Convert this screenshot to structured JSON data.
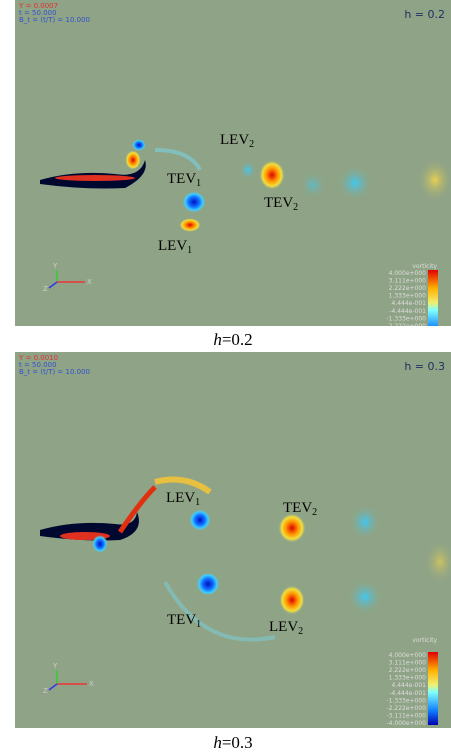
{
  "panels": [
    {
      "header": [
        "Y = 0.0007",
        "t = 50.000",
        "B_t = (t/T) = 10.000"
      ],
      "h_label": "h = 0.2",
      "annotations": [
        {
          "text": "LEV",
          "sub": "2"
        },
        {
          "text": "TEV",
          "sub": "1"
        },
        {
          "text": "TEV",
          "sub": "2"
        },
        {
          "text": "LEV",
          "sub": "1"
        }
      ],
      "axes": [
        "Y",
        "X",
        "Z"
      ],
      "colorbar_title": "vorticity",
      "colorbar_labels": [
        "4.000e+000",
        "3.111e+000",
        "2.222e+000",
        "1.333e+000",
        "4.444e-001",
        "-4.444e-001",
        "-1.333e+000",
        "-2.222e+000",
        "-3.111e+000",
        "-4.000e+000"
      ],
      "caption": {
        "var": "h",
        "rest": "=0.2"
      }
    },
    {
      "header": [
        "Y = 0.0010",
        "t = 50.000",
        "B_t = (t/T) = 10.000"
      ],
      "h_label": "h = 0.3",
      "annotations": [
        {
          "text": "LEV",
          "sub": "1"
        },
        {
          "text": "TEV",
          "sub": "2"
        },
        {
          "text": "TEV",
          "sub": "1"
        },
        {
          "text": "LEV",
          "sub": "2"
        }
      ],
      "axes": [
        "Y",
        "X",
        "Z"
      ],
      "colorbar_title": "vorticity",
      "colorbar_labels": [
        "4.000e+000",
        "3.111e+000",
        "2.222e+000",
        "1.333e+000",
        "4.444e-001",
        "-4.444e-001",
        "-1.333e+000",
        "-2.222e+000",
        "-3.111e+000",
        "-4.000e+000"
      ],
      "caption": {
        "var": "h",
        "rest": "=0.3"
      }
    }
  ]
}
